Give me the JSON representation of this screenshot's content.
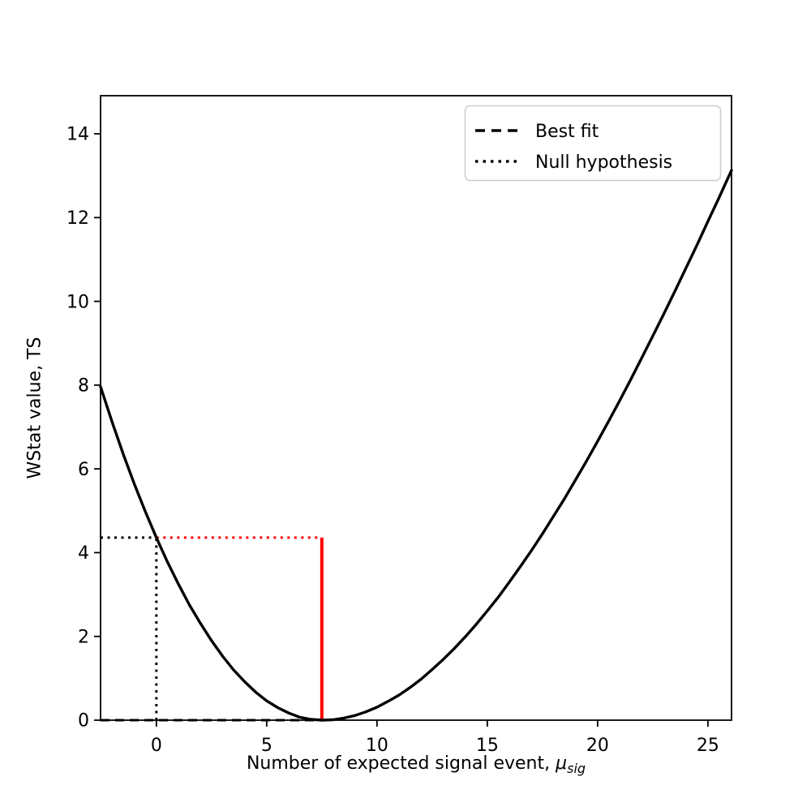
{
  "chart_data": {
    "type": "line",
    "title": "",
    "xlabel": "Number of expected signal event, μ_sig",
    "xlabel_parts": {
      "prefix": "Number of expected signal event, ",
      "symbol": "μ",
      "subscript": "sig"
    },
    "ylabel": "WStat value, TS",
    "xlim": [
      -2.53,
      26.07
    ],
    "ylim": [
      0,
      14.91
    ],
    "xticks": [
      0,
      5,
      10,
      15,
      20,
      25
    ],
    "yticks": [
      0,
      2,
      4,
      6,
      8,
      10,
      12,
      14
    ],
    "grid": false,
    "colors": {
      "curve": "#000000",
      "highlight": "#ff0000",
      "legend_edge": "#cccccc",
      "text": "#000000"
    },
    "legend": {
      "position": "upper right",
      "entries": [
        {
          "label": "Best fit",
          "style": "dashed",
          "color": "#000000"
        },
        {
          "label": "Null hypothesis",
          "style": "dotted",
          "color": "#000000"
        }
      ]
    },
    "series": [
      {
        "name": "wstat-profile",
        "color": "#000000",
        "style": "solid",
        "points": [
          [
            -2.53,
            7.96
          ],
          [
            -2,
            7.11
          ],
          [
            -1.5,
            6.35
          ],
          [
            -1,
            5.64
          ],
          [
            -0.5,
            4.98
          ],
          [
            0,
            4.36
          ],
          [
            0.5,
            3.78
          ],
          [
            1,
            3.25
          ],
          [
            1.5,
            2.75
          ],
          [
            2,
            2.31
          ],
          [
            2.5,
            1.9
          ],
          [
            3,
            1.53
          ],
          [
            3.5,
            1.2
          ],
          [
            4,
            0.92
          ],
          [
            4.5,
            0.67
          ],
          [
            5,
            0.46
          ],
          [
            5.5,
            0.3
          ],
          [
            6,
            0.17
          ],
          [
            6.5,
            0.07
          ],
          [
            7,
            0.02
          ],
          [
            7.5,
            0
          ],
          [
            8,
            0.01
          ],
          [
            8.5,
            0.05
          ],
          [
            9,
            0.11
          ],
          [
            9.5,
            0.2
          ],
          [
            10,
            0.31
          ],
          [
            10.5,
            0.45
          ],
          [
            11,
            0.6
          ],
          [
            11.5,
            0.78
          ],
          [
            12,
            0.98
          ],
          [
            12.5,
            1.21
          ],
          [
            13,
            1.45
          ],
          [
            13.5,
            1.71
          ],
          [
            14,
            1.99
          ],
          [
            14.5,
            2.29
          ],
          [
            15,
            2.61
          ],
          [
            15.5,
            2.94
          ],
          [
            16,
            3.3
          ],
          [
            16.5,
            3.67
          ],
          [
            17,
            4.05
          ],
          [
            17.5,
            4.45
          ],
          [
            18,
            4.87
          ],
          [
            18.5,
            5.29
          ],
          [
            19,
            5.74
          ],
          [
            19.5,
            6.19
          ],
          [
            20,
            6.66
          ],
          [
            20.5,
            7.14
          ],
          [
            21,
            7.63
          ],
          [
            21.5,
            8.13
          ],
          [
            22,
            8.65
          ],
          [
            22.5,
            9.17
          ],
          [
            23,
            9.7
          ],
          [
            23.5,
            10.24
          ],
          [
            24,
            10.79
          ],
          [
            24.5,
            11.34
          ],
          [
            25,
            11.91
          ],
          [
            25.5,
            12.47
          ],
          [
            26.07,
            13.13
          ]
        ]
      }
    ],
    "annotations": {
      "best_fit_mu": 7.5,
      "null_mu": 0,
      "ts_null": 4.36,
      "lines": [
        {
          "name": "best-fit-zero-line",
          "style": "dashed",
          "color": "#000000",
          "y": 0,
          "x_from": -2.53,
          "x_to": 7.5
        },
        {
          "name": "null-hypothesis-hline-black",
          "style": "dotted",
          "color": "#000000",
          "y": 4.36,
          "x_from": -2.53,
          "x_to": 0
        },
        {
          "name": "null-hypothesis-vline",
          "style": "dotted",
          "color": "#000000",
          "x": 0,
          "y_from": 0,
          "y_to": 4.36
        },
        {
          "name": "ts-null-hline-red",
          "style": "dotted",
          "color": "#ff0000",
          "y": 4.36,
          "x_from": 0,
          "x_to": 7.5
        },
        {
          "name": "best-fit-vline-red",
          "style": "solid",
          "color": "#ff0000",
          "x": 7.5,
          "y_from": 0,
          "y_to": 4.36
        }
      ]
    }
  }
}
